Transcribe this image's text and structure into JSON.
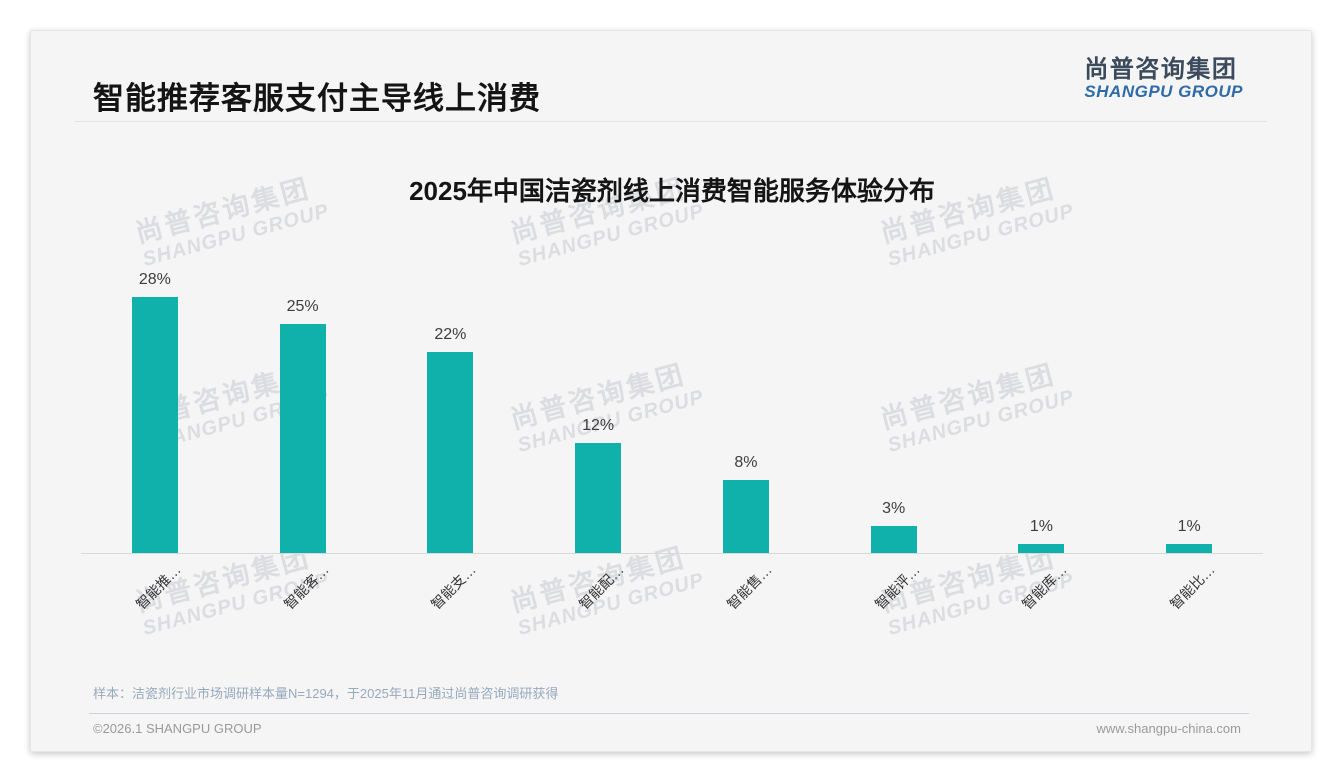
{
  "header": {
    "title": "智能推荐客服支付主导线上消费",
    "logo_cn": "尚普咨询集团",
    "logo_en": "SHANGPU GROUP"
  },
  "watermark": {
    "line1": "尚普咨询集团",
    "line2": "SHANGPU GROUP"
  },
  "chart_data": {
    "type": "bar",
    "title": "2025年中国洁瓷剂线上消费智能服务体验分布",
    "categories": [
      "智能推…",
      "智能客…",
      "智能支…",
      "智能配…",
      "智能售…",
      "智能评…",
      "智能库…",
      "智能比…"
    ],
    "values": [
      28,
      25,
      22,
      12,
      8,
      3,
      1,
      1
    ],
    "value_labels": [
      "28%",
      "25%",
      "22%",
      "12%",
      "8%",
      "3%",
      "1%",
      "1%"
    ],
    "unit": "%",
    "bar_color": "#10b0ab",
    "xlabel": "",
    "ylabel": "",
    "grid": false,
    "legend": null
  },
  "footnote": {
    "text": "样本：洁瓷剂行业市场调研样本量N=1294，于2025年11月通过尚普咨询调研获得"
  },
  "footer": {
    "copyright": "©2026.1 SHANGPU GROUP",
    "website": "www.shangpu-china.com"
  }
}
